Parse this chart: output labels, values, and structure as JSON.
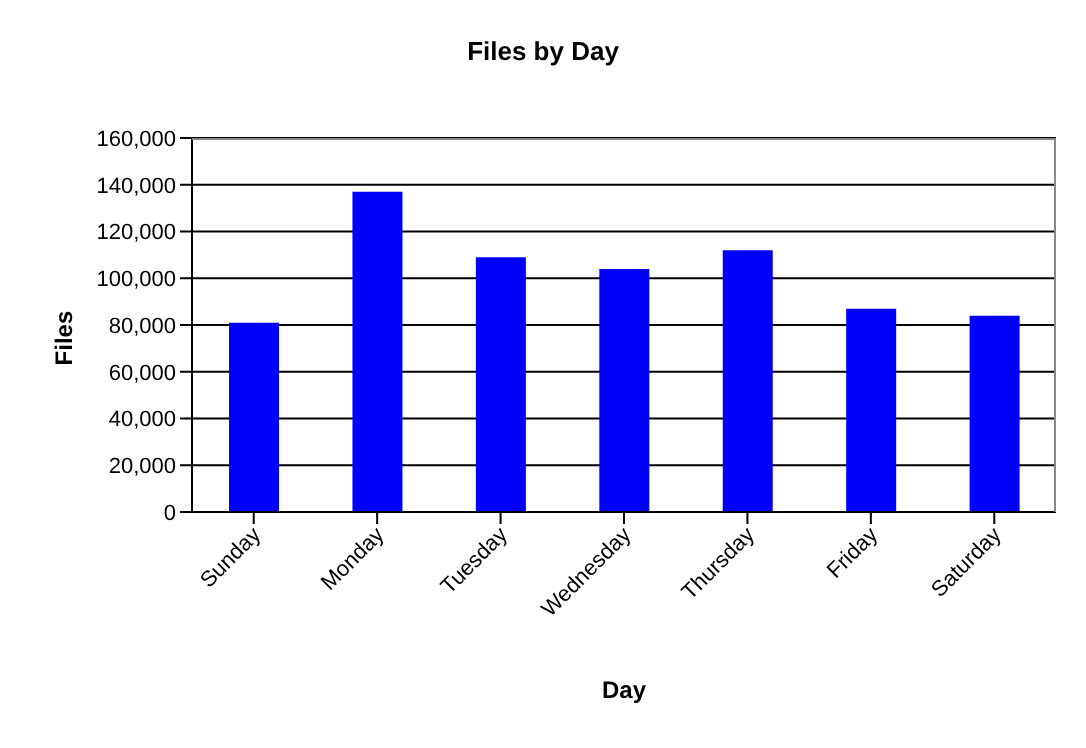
{
  "chart_data": {
    "type": "bar",
    "title": "Files by Day",
    "xlabel": "Day",
    "ylabel": "Files",
    "categories": [
      "Sunday",
      "Monday",
      "Tuesday",
      "Wednesday",
      "Thursday",
      "Friday",
      "Saturday"
    ],
    "values": [
      81000,
      137000,
      109000,
      104000,
      112000,
      87000,
      84000
    ],
    "color": "#0000ff",
    "ylim": [
      0,
      160000
    ],
    "yticks": [
      0,
      {
        "value": 20000,
        "label": "20,000"
      },
      {
        "value": 40000,
        "label": "40,000"
      },
      {
        "value": 60000,
        "label": "60,000"
      },
      {
        "value": 80000,
        "label": "80,000"
      },
      {
        "value": 100000,
        "label": "100,000"
      },
      {
        "value": 120000,
        "label": "120,000"
      },
      {
        "value": 140000,
        "label": "140,000"
      },
      {
        "value": 160000,
        "label": "160,000"
      }
    ],
    "grid": "y",
    "legend": false
  }
}
